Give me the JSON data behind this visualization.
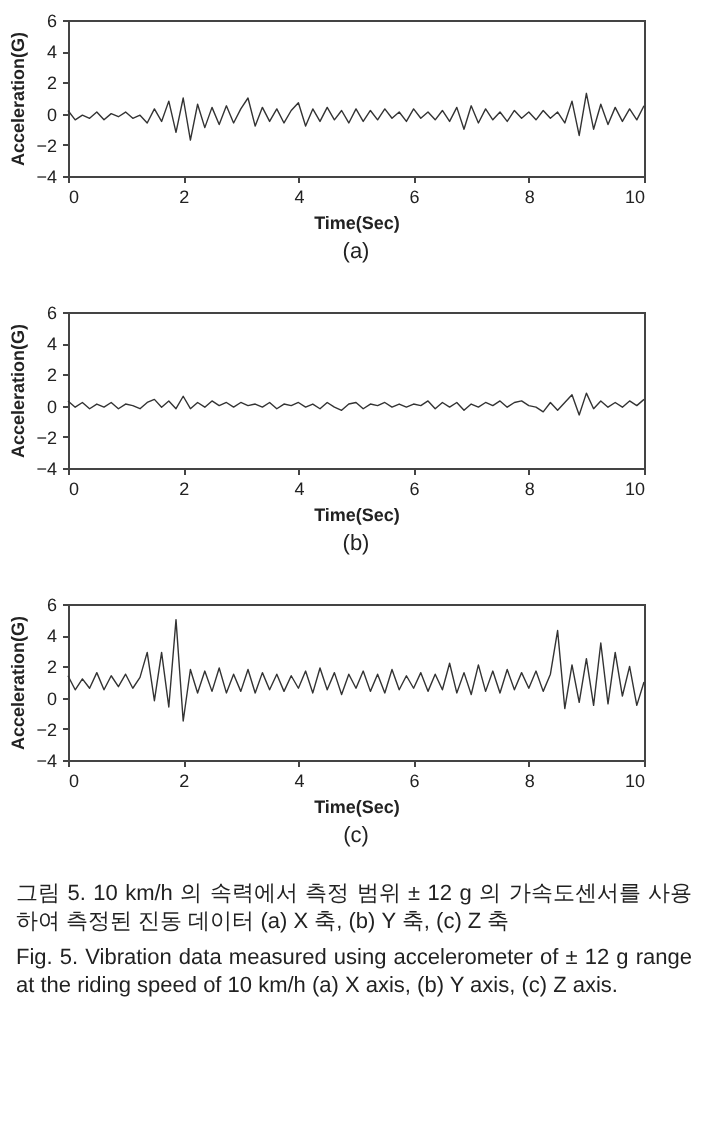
{
  "chart_data": [
    {
      "type": "line",
      "title": "(a)",
      "xlabel": "Time(Sec)",
      "ylabel": "Acceleration(G)",
      "xlim": [
        0,
        10
      ],
      "ylim": [
        -4,
        6
      ],
      "xticks": [
        0,
        2,
        4,
        6,
        8,
        10
      ],
      "yticks": [
        -4,
        -2,
        0,
        2,
        4,
        6
      ],
      "grid": false,
      "x": [
        0,
        0.125,
        0.25,
        0.375,
        0.5,
        0.625,
        0.75,
        0.875,
        1,
        1.125,
        1.25,
        1.375,
        1.5,
        1.625,
        1.75,
        1.875,
        2,
        2.125,
        2.25,
        2.375,
        2.5,
        2.625,
        2.75,
        2.875,
        3,
        3.125,
        3.25,
        3.375,
        3.5,
        3.625,
        3.75,
        3.875,
        4,
        4.125,
        4.25,
        4.375,
        4.5,
        4.625,
        4.75,
        4.875,
        5,
        5.125,
        5.25,
        5.375,
        5.5,
        5.625,
        5.75,
        5.875,
        6,
        6.125,
        6.25,
        6.375,
        6.5,
        6.625,
        6.75,
        6.875,
        7,
        7.125,
        7.25,
        7.375,
        7.5,
        7.625,
        7.75,
        7.875,
        8,
        8.125,
        8.25,
        8.375,
        8.5,
        8.625,
        8.75,
        8.875,
        9,
        9.125,
        9.25,
        9.375,
        9.5,
        9.625,
        9.75,
        9.875,
        10
      ],
      "series": [
        {
          "color": "#333333",
          "values": [
            0.2,
            -0.4,
            -0.1,
            -0.3,
            0.1,
            -0.4,
            0,
            -0.2,
            0.1,
            -0.3,
            -0.1,
            -0.6,
            0.3,
            -0.5,
            0.8,
            -1.2,
            1.0,
            -1.7,
            0.6,
            -0.9,
            0.4,
            -0.7,
            0.5,
            -0.6,
            0.3,
            1.0,
            -0.8,
            0.4,
            -0.5,
            0.3,
            -0.6,
            0.2,
            0.7,
            -0.8,
            0.3,
            -0.5,
            0.4,
            -0.4,
            0.2,
            -0.6,
            0.3,
            -0.5,
            0.2,
            -0.4,
            0.3,
            -0.3,
            0.1,
            -0.5,
            0.3,
            -0.3,
            0.1,
            -0.4,
            0.2,
            -0.5,
            0.4,
            -1.0,
            0.5,
            -0.6,
            0.3,
            -0.4,
            0.1,
            -0.5,
            0.2,
            -0.3,
            0.1,
            -0.4,
            0.2,
            -0.3,
            0.1,
            -0.6,
            0.8,
            -1.4,
            1.3,
            -1.0,
            0.6,
            -0.7,
            0.4,
            -0.5,
            0.3,
            -0.4,
            0.5
          ]
        }
      ]
    },
    {
      "type": "line",
      "title": "(b)",
      "xlabel": "Time(Sec)",
      "ylabel": "Acceleration(G)",
      "xlim": [
        0,
        10
      ],
      "ylim": [
        -4,
        6
      ],
      "xticks": [
        0,
        2,
        4,
        6,
        8,
        10
      ],
      "yticks": [
        -4,
        -2,
        0,
        2,
        4,
        6
      ],
      "grid": false,
      "x": [
        0,
        0.125,
        0.25,
        0.375,
        0.5,
        0.625,
        0.75,
        0.875,
        1,
        1.125,
        1.25,
        1.375,
        1.5,
        1.625,
        1.75,
        1.875,
        2,
        2.125,
        2.25,
        2.375,
        2.5,
        2.625,
        2.75,
        2.875,
        3,
        3.125,
        3.25,
        3.375,
        3.5,
        3.625,
        3.75,
        3.875,
        4,
        4.125,
        4.25,
        4.375,
        4.5,
        4.625,
        4.75,
        4.875,
        5,
        5.125,
        5.25,
        5.375,
        5.5,
        5.625,
        5.75,
        5.875,
        6,
        6.125,
        6.25,
        6.375,
        6.5,
        6.625,
        6.75,
        6.875,
        7,
        7.125,
        7.25,
        7.375,
        7.5,
        7.625,
        7.75,
        7.875,
        8,
        8.125,
        8.25,
        8.375,
        8.5,
        8.625,
        8.75,
        8.875,
        9,
        9.125,
        9.25,
        9.375,
        9.5,
        9.625,
        9.75,
        9.875,
        10
      ],
      "series": [
        {
          "color": "#333333",
          "values": [
            0.3,
            -0.1,
            0.2,
            -0.2,
            0.1,
            -0.1,
            0.2,
            -0.2,
            0.1,
            0,
            -0.2,
            0.2,
            0.4,
            -0.1,
            0.3,
            -0.2,
            0.6,
            -0.2,
            0.2,
            -0.1,
            0.3,
            0,
            0.2,
            -0.1,
            0.2,
            0,
            0.1,
            -0.1,
            0.2,
            -0.2,
            0.1,
            0,
            0.2,
            -0.1,
            0.1,
            -0.2,
            0.2,
            -0.1,
            -0.3,
            0.1,
            0.2,
            -0.2,
            0.1,
            0,
            0.2,
            -0.1,
            0.1,
            -0.1,
            0.1,
            0,
            0.3,
            -0.2,
            0.2,
            -0.1,
            0.2,
            -0.3,
            0.1,
            -0.1,
            0.2,
            0,
            0.3,
            -0.1,
            0.2,
            0.3,
            0,
            -0.1,
            -0.4,
            0.2,
            -0.3,
            0.2,
            0.7,
            -0.6,
            0.8,
            -0.2,
            0.3,
            -0.1,
            0.2,
            -0.1,
            0.3,
            0,
            0.4
          ]
        }
      ]
    },
    {
      "type": "line",
      "title": "(c)",
      "xlabel": "Time(Sec)",
      "ylabel": "Acceleration(G)",
      "xlim": [
        0,
        10
      ],
      "ylim": [
        -4,
        6
      ],
      "xticks": [
        0,
        2,
        4,
        6,
        8,
        10
      ],
      "yticks": [
        -4,
        -2,
        0,
        2,
        4,
        6
      ],
      "grid": false,
      "x": [
        0,
        0.125,
        0.25,
        0.375,
        0.5,
        0.625,
        0.75,
        0.875,
        1,
        1.125,
        1.25,
        1.375,
        1.5,
        1.625,
        1.75,
        1.875,
        2,
        2.125,
        2.25,
        2.375,
        2.5,
        2.625,
        2.75,
        2.875,
        3,
        3.125,
        3.25,
        3.375,
        3.5,
        3.625,
        3.75,
        3.875,
        4,
        4.125,
        4.25,
        4.375,
        4.5,
        4.625,
        4.75,
        4.875,
        5,
        5.125,
        5.25,
        5.375,
        5.5,
        5.625,
        5.75,
        5.875,
        6,
        6.125,
        6.25,
        6.375,
        6.5,
        6.625,
        6.75,
        6.875,
        7,
        7.125,
        7.25,
        7.375,
        7.5,
        7.625,
        7.75,
        7.875,
        8,
        8.125,
        8.25,
        8.375,
        8.5,
        8.625,
        8.75,
        8.875,
        9,
        9.125,
        9.25,
        9.375,
        9.5,
        9.625,
        9.75,
        9.875,
        10
      ],
      "series": [
        {
          "color": "#333333",
          "values": [
            1.4,
            0.5,
            1.2,
            0.6,
            1.6,
            0.5,
            1.4,
            0.7,
            1.5,
            0.6,
            1.3,
            2.9,
            -0.2,
            2.9,
            -0.6,
            5.0,
            -1.5,
            1.8,
            0.3,
            1.7,
            0.4,
            1.9,
            0.3,
            1.5,
            0.4,
            1.8,
            0.3,
            1.6,
            0.5,
            1.5,
            0.4,
            1.4,
            0.6,
            1.7,
            0.3,
            1.9,
            0.5,
            1.6,
            0.2,
            1.5,
            0.6,
            1.7,
            0.4,
            1.5,
            0.3,
            1.8,
            0.5,
            1.4,
            0.6,
            1.6,
            0.4,
            1.5,
            0.5,
            2.2,
            0.3,
            1.6,
            0.2,
            2.1,
            0.4,
            1.7,
            0.3,
            1.8,
            0.5,
            1.6,
            0.6,
            1.7,
            0.4,
            1.5,
            4.3,
            -0.7,
            2.1,
            -0.3,
            2.5,
            -0.5,
            3.5,
            -0.4,
            2.9,
            0.1,
            2.0,
            -0.5,
            1.0
          ]
        }
      ],
      "annotations": [
        "그림 5. 10 km/h 의 속력에서 측정 범위 ± 12 g 의 가속도센서를 사용하여 측정된 진동 데이터 (a) X 축, (b) Y 축, (c) Z 축",
        "Fig. 5. Vibration data measured using accelerometer of ± 12 g range at the riding speed of 10 km/h (a) X axis, (b) Y axis, (c) Z axis."
      ]
    }
  ]
}
